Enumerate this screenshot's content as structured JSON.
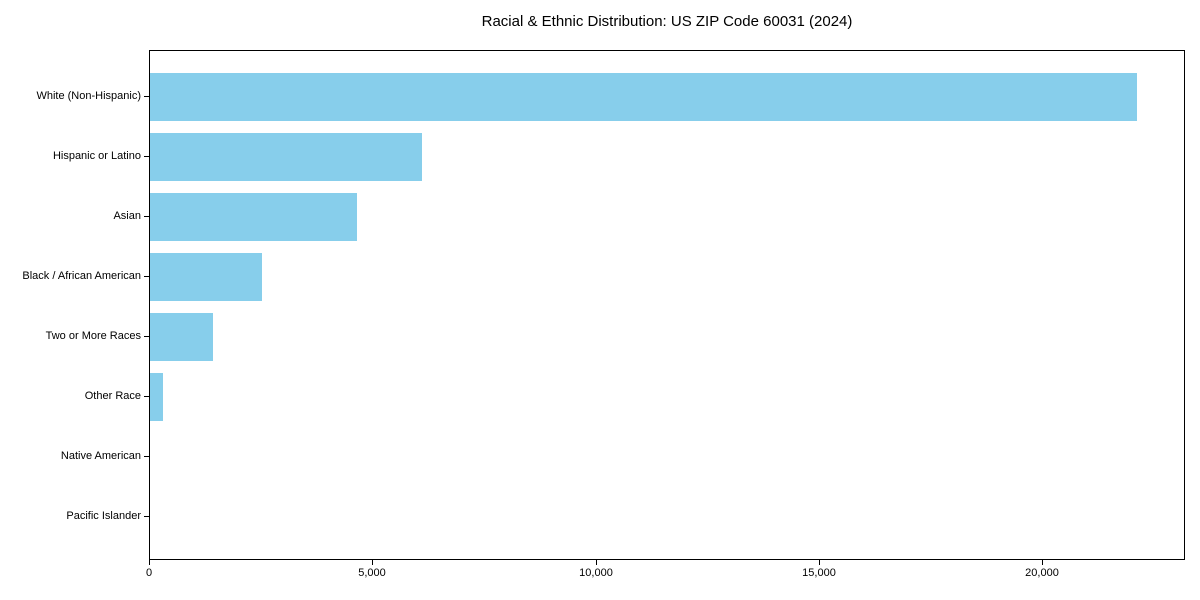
{
  "title": "Racial & Ethnic Distribution: US ZIP Code 60031 (2024)",
  "chart_data": {
    "type": "bar",
    "orientation": "horizontal",
    "title": "Racial & Ethnic Distribution: US ZIP Code 60031 (2024)",
    "categories": [
      "White (Non-Hispanic)",
      "Hispanic or Latino",
      "Asian",
      "Black / African American",
      "Two or More Races",
      "Other Race",
      "Native American",
      "Pacific Islander"
    ],
    "values": [
      22100,
      6100,
      4640,
      2510,
      1400,
      285,
      0,
      0
    ],
    "xlabel": "",
    "ylabel": "",
    "xlim": [
      0,
      23200
    ],
    "xticks": [
      0,
      5000,
      10000,
      15000,
      20000
    ],
    "xtick_labels": [
      "0",
      "5,000",
      "10,000",
      "15,000",
      "20,000"
    ],
    "bar_color": "#87CEEB",
    "axis_color": "#000000",
    "background": "#FFFFFF",
    "grid": false,
    "legend": null
  }
}
